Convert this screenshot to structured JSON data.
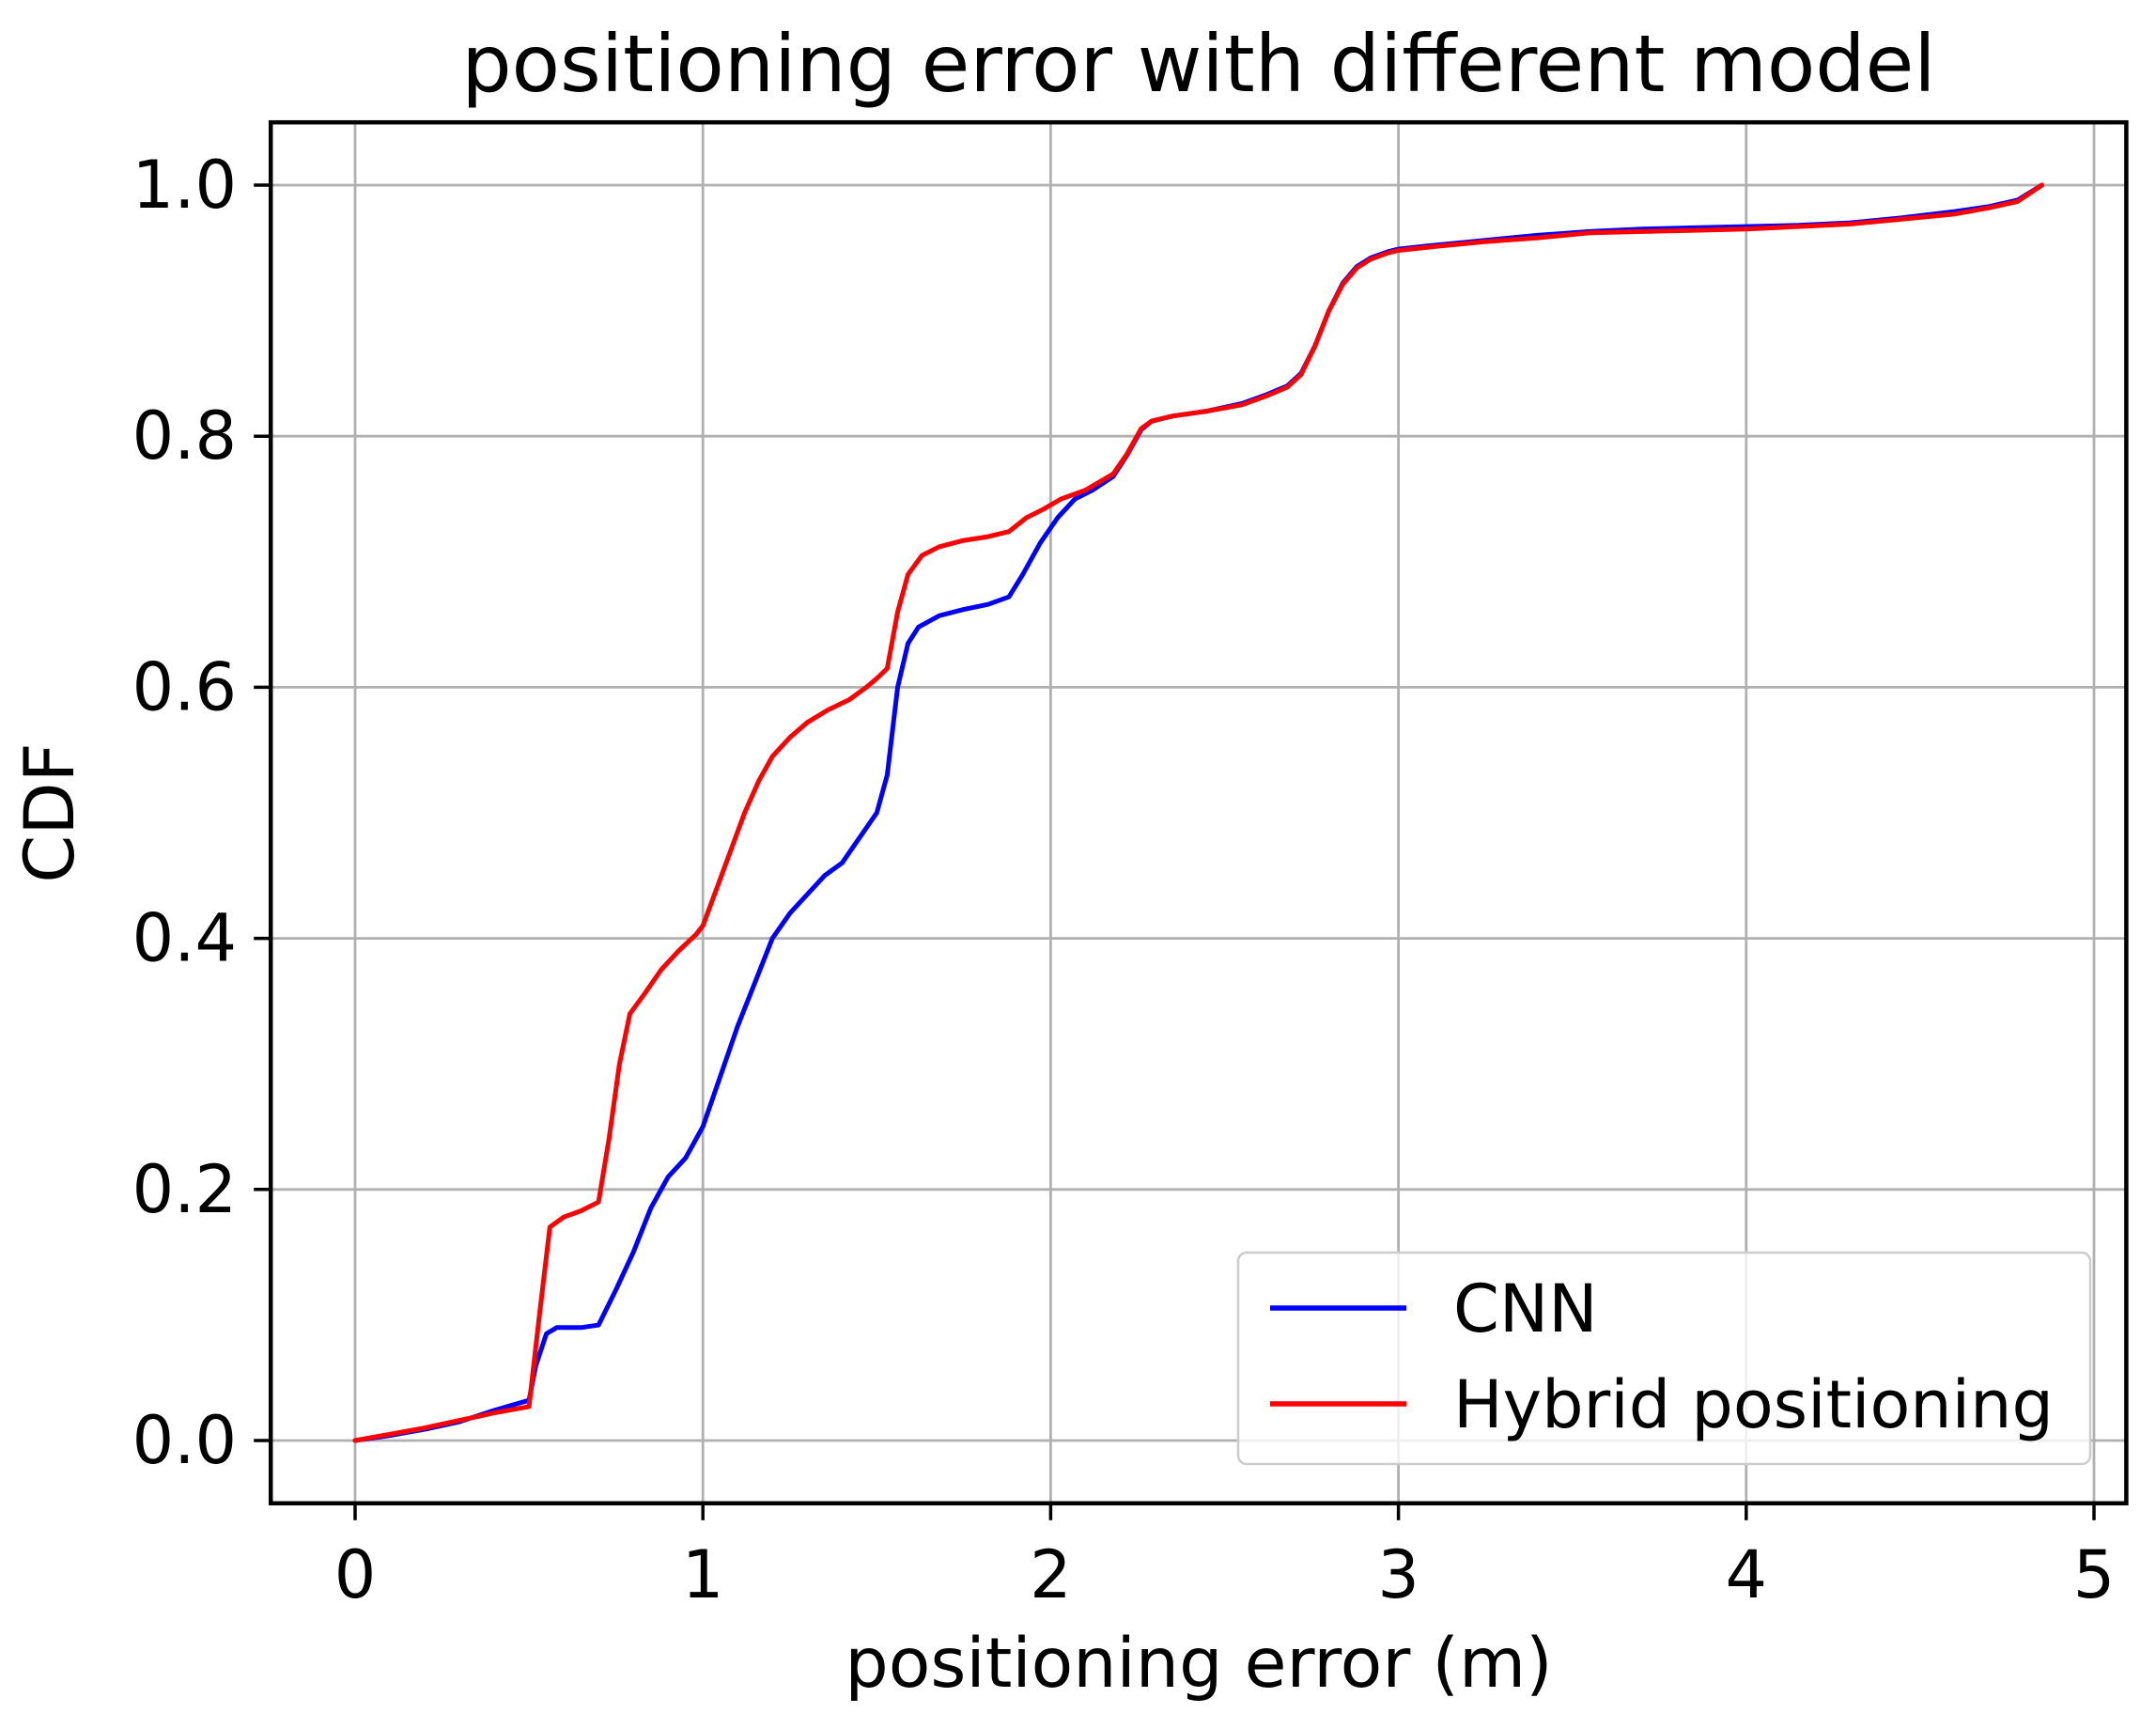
{
  "chart_data": {
    "type": "line",
    "title": "positioning error with different model",
    "xlabel": "positioning error (m)",
    "ylabel": "CDF",
    "xlim": [
      -0.2425,
      5.0925
    ],
    "ylim": [
      -0.05,
      1.05
    ],
    "grid": true,
    "x_ticks": {
      "values": [
        0,
        1,
        2,
        3,
        4,
        5
      ],
      "labels": [
        "0",
        "1",
        "2",
        "3",
        "4",
        "5"
      ]
    },
    "y_ticks": {
      "values": [
        0.0,
        0.2,
        0.4,
        0.6,
        0.8,
        1.0
      ],
      "labels": [
        "0.0",
        "0.2",
        "0.4",
        "0.6",
        "0.8",
        "1.0"
      ]
    },
    "legend": {
      "position": "lower right",
      "entries": [
        "CNN",
        "Hybrid positioning"
      ]
    },
    "colors": {
      "grid": "#b0b0b0",
      "spine": "#000000",
      "legend_border": "#cccccc",
      "cnn": "#0000ff",
      "hybrid": "#ff0000"
    },
    "series": [
      {
        "name": "CNN",
        "color": "#0000ff",
        "points": [
          [
            0,
            0
          ],
          [
            0.1,
            0.004
          ],
          [
            0.2,
            0.009
          ],
          [
            0.3,
            0.015
          ],
          [
            0.4,
            0.024
          ],
          [
            0.5,
            0.032
          ],
          [
            0.52,
            0.06
          ],
          [
            0.55,
            0.085
          ],
          [
            0.58,
            0.09
          ],
          [
            0.65,
            0.09
          ],
          [
            0.7,
            0.092
          ],
          [
            0.75,
            0.12
          ],
          [
            0.8,
            0.15
          ],
          [
            0.85,
            0.185
          ],
          [
            0.9,
            0.21
          ],
          [
            0.95,
            0.225
          ],
          [
            1.0,
            0.25
          ],
          [
            1.05,
            0.29
          ],
          [
            1.1,
            0.33
          ],
          [
            1.15,
            0.365
          ],
          [
            1.2,
            0.4
          ],
          [
            1.25,
            0.42
          ],
          [
            1.3,
            0.435
          ],
          [
            1.35,
            0.45
          ],
          [
            1.4,
            0.46
          ],
          [
            1.45,
            0.48
          ],
          [
            1.5,
            0.5
          ],
          [
            1.53,
            0.53
          ],
          [
            1.56,
            0.6
          ],
          [
            1.59,
            0.635
          ],
          [
            1.62,
            0.648
          ],
          [
            1.68,
            0.657
          ],
          [
            1.75,
            0.662
          ],
          [
            1.82,
            0.666
          ],
          [
            1.88,
            0.672
          ],
          [
            1.92,
            0.69
          ],
          [
            1.97,
            0.715
          ],
          [
            2.02,
            0.735
          ],
          [
            2.07,
            0.75
          ],
          [
            2.12,
            0.757
          ],
          [
            2.18,
            0.768
          ],
          [
            2.22,
            0.785
          ],
          [
            2.26,
            0.805
          ],
          [
            2.29,
            0.812
          ],
          [
            2.35,
            0.816
          ],
          [
            2.45,
            0.82
          ],
          [
            2.55,
            0.826
          ],
          [
            2.62,
            0.833
          ],
          [
            2.68,
            0.84
          ],
          [
            2.72,
            0.85
          ],
          [
            2.76,
            0.872
          ],
          [
            2.8,
            0.9
          ],
          [
            2.84,
            0.922
          ],
          [
            2.88,
            0.935
          ],
          [
            2.92,
            0.942
          ],
          [
            2.97,
            0.947
          ],
          [
            3.0,
            0.949
          ],
          [
            3.1,
            0.952
          ],
          [
            3.25,
            0.956
          ],
          [
            3.4,
            0.96
          ],
          [
            3.55,
            0.963
          ],
          [
            3.7,
            0.965
          ],
          [
            3.85,
            0.966
          ],
          [
            4.0,
            0.967
          ],
          [
            4.15,
            0.968
          ],
          [
            4.3,
            0.97
          ],
          [
            4.45,
            0.974
          ],
          [
            4.6,
            0.979
          ],
          [
            4.7,
            0.983
          ],
          [
            4.78,
            0.988
          ],
          [
            4.85,
            1.0
          ]
        ]
      },
      {
        "name": "Hybrid positioning",
        "color": "#ff0000",
        "points": [
          [
            0,
            0
          ],
          [
            0.1,
            0.005
          ],
          [
            0.2,
            0.01
          ],
          [
            0.3,
            0.016
          ],
          [
            0.4,
            0.022
          ],
          [
            0.5,
            0.027
          ],
          [
            0.53,
            0.1
          ],
          [
            0.56,
            0.17
          ],
          [
            0.6,
            0.178
          ],
          [
            0.65,
            0.183
          ],
          [
            0.7,
            0.19
          ],
          [
            0.73,
            0.24
          ],
          [
            0.76,
            0.3
          ],
          [
            0.79,
            0.34
          ],
          [
            0.83,
            0.355
          ],
          [
            0.88,
            0.375
          ],
          [
            0.93,
            0.39
          ],
          [
            0.98,
            0.403
          ],
          [
            1.0,
            0.41
          ],
          [
            1.04,
            0.44
          ],
          [
            1.08,
            0.47
          ],
          [
            1.12,
            0.5
          ],
          [
            1.16,
            0.525
          ],
          [
            1.2,
            0.545
          ],
          [
            1.25,
            0.56
          ],
          [
            1.3,
            0.572
          ],
          [
            1.36,
            0.582
          ],
          [
            1.42,
            0.59
          ],
          [
            1.47,
            0.6
          ],
          [
            1.5,
            0.607
          ],
          [
            1.53,
            0.615
          ],
          [
            1.56,
            0.66
          ],
          [
            1.59,
            0.69
          ],
          [
            1.63,
            0.705
          ],
          [
            1.68,
            0.712
          ],
          [
            1.75,
            0.717
          ],
          [
            1.82,
            0.72
          ],
          [
            1.88,
            0.724
          ],
          [
            1.93,
            0.735
          ],
          [
            1.98,
            0.742
          ],
          [
            2.03,
            0.75
          ],
          [
            2.1,
            0.757
          ],
          [
            2.18,
            0.77
          ],
          [
            2.22,
            0.786
          ],
          [
            2.26,
            0.806
          ],
          [
            2.29,
            0.812
          ],
          [
            2.35,
            0.816
          ],
          [
            2.45,
            0.82
          ],
          [
            2.55,
            0.825
          ],
          [
            2.62,
            0.832
          ],
          [
            2.68,
            0.839
          ],
          [
            2.72,
            0.849
          ],
          [
            2.76,
            0.872
          ],
          [
            2.8,
            0.9
          ],
          [
            2.84,
            0.921
          ],
          [
            2.88,
            0.934
          ],
          [
            2.92,
            0.941
          ],
          [
            2.97,
            0.946
          ],
          [
            3.0,
            0.948
          ],
          [
            3.1,
            0.951
          ],
          [
            3.25,
            0.955
          ],
          [
            3.4,
            0.958
          ],
          [
            3.55,
            0.962
          ],
          [
            3.7,
            0.963
          ],
          [
            3.85,
            0.964
          ],
          [
            4.0,
            0.965
          ],
          [
            4.15,
            0.967
          ],
          [
            4.3,
            0.969
          ],
          [
            4.45,
            0.973
          ],
          [
            4.6,
            0.977
          ],
          [
            4.7,
            0.982
          ],
          [
            4.78,
            0.987
          ],
          [
            4.85,
            1.0
          ]
        ]
      }
    ]
  }
}
